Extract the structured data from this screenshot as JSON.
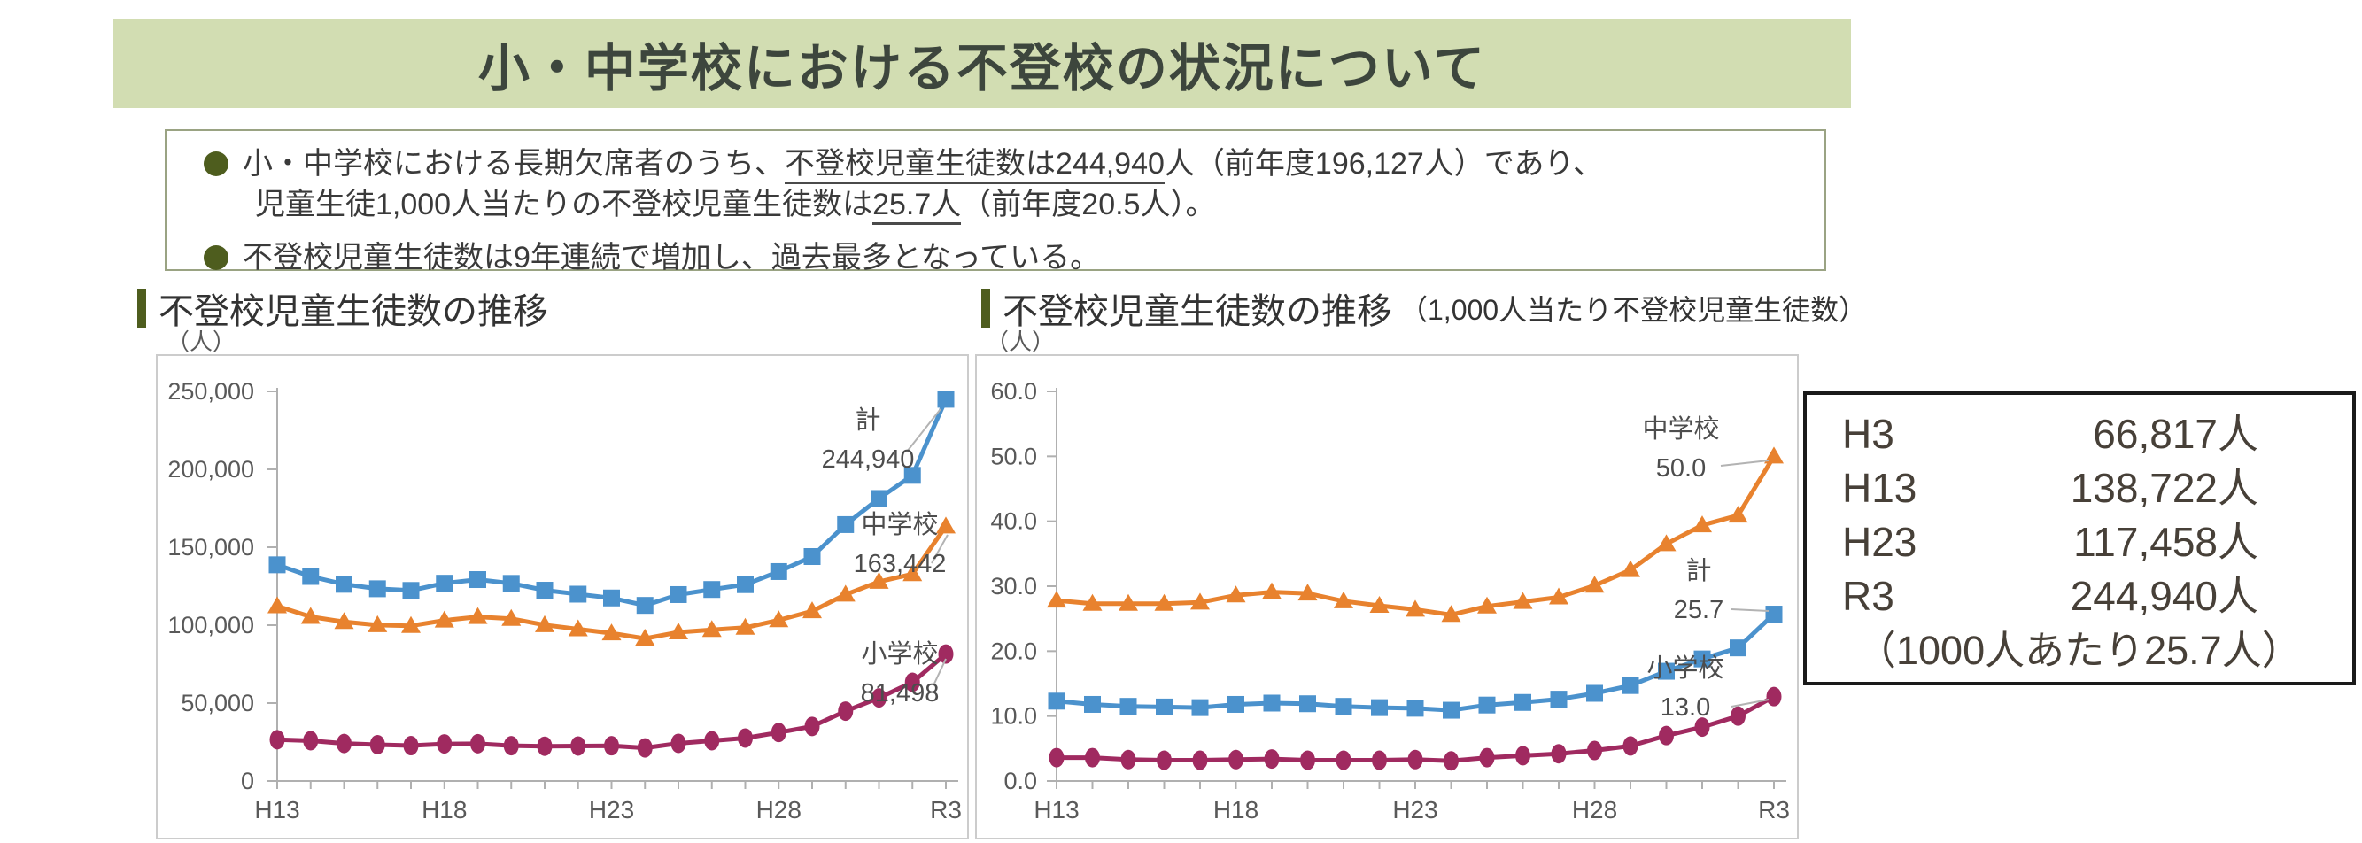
{
  "banner": {
    "title": "小・中学校における不登校の状況について"
  },
  "summary": {
    "b1_l1_a": "小・中学校における長期欠席者のうち、",
    "b1_l1_u": "不登校児童生徒数は244,940",
    "b1_l1_b": "人（前年度196,127人）であり、",
    "b1_l2_a": "児童生徒1,000人当たりの不登校児童生徒数は",
    "b1_l2_u": "25.7人",
    "b1_l2_b": "（前年度20.5人）。",
    "b2": "不登校児童生徒数は9年連続で増加し、過去最多となっている。"
  },
  "colors": {
    "total": "#4b92cd",
    "junior_high": "#e8822e",
    "elementary": "#a02a60",
    "banner_bg": "#d2ddb2",
    "accent_olive": "#4e5d1e",
    "axis": "#b0b0b0",
    "tick_text": "#595959",
    "annotation_text": "#4d4d4d"
  },
  "chart_data": [
    {
      "type": "line",
      "header": "不登校児童生徒数の推移",
      "header_suffix": "",
      "unit_label": "（人）",
      "x": [
        "H13",
        "H14",
        "H15",
        "H16",
        "H17",
        "H18",
        "H19",
        "H20",
        "H21",
        "H22",
        "H23",
        "H24",
        "H25",
        "H26",
        "H27",
        "H28",
        "H29",
        "H30",
        "R1",
        "R2",
        "R3"
      ],
      "x_tick_label_indices": [
        0,
        5,
        10,
        15,
        20
      ],
      "ylim": [
        0,
        250000
      ],
      "yticks": [
        0,
        50000,
        100000,
        150000,
        200000,
        250000
      ],
      "ytick_labels": [
        "0",
        "50,000",
        "100,000",
        "150,000",
        "200,000",
        "250,000"
      ],
      "grid": false,
      "legend_position": "end-labels",
      "series": [
        {
          "name": "計",
          "marker": "square",
          "color": "#4b92cd",
          "values": [
            138722,
            131252,
            126226,
            123358,
            122287,
            126894,
            129254,
            126805,
            122432,
            119891,
            117458,
            112689,
            119617,
            122897,
            126009,
            134398,
            144031,
            164528,
            181272,
            196127,
            244940
          ]
        },
        {
          "name": "中学校",
          "marker": "triangle",
          "color": "#e8822e",
          "values": [
            112211,
            105383,
            102149,
            100040,
            99578,
            103069,
            105328,
            104153,
            100105,
            97428,
            94836,
            91446,
            95442,
            97033,
            98408,
            103235,
            108999,
            119687,
            127922,
            132777,
            163442
          ]
        },
        {
          "name": "小学校",
          "marker": "circle",
          "color": "#a02a60",
          "values": [
            26511,
            25869,
            24077,
            23318,
            22709,
            23825,
            23926,
            22652,
            22327,
            22463,
            22622,
            21243,
            24175,
            25864,
            27581,
            31151,
            35032,
            44841,
            53350,
            63350,
            81498
          ]
        }
      ],
      "annotations": [
        {
          "name": "計",
          "value": "244,940",
          "x": 802,
          "y": 82,
          "connector": [
            846,
            108,
            884,
            60
          ]
        },
        {
          "name": "中学校",
          "value": "163,442",
          "x": 838,
          "y": 200,
          "connector": [
            874,
            234,
            892,
            202
          ]
        },
        {
          "name": "小学校",
          "value": "81,498",
          "x": 838,
          "y": 346,
          "connector": [
            876,
            372,
            890,
            342
          ]
        }
      ]
    },
    {
      "type": "line",
      "header": "不登校児童生徒数の推移",
      "header_suffix": "（1,000人当たり不登校児童生徒数）",
      "unit_label": "（人）",
      "x": [
        "H13",
        "H14",
        "H15",
        "H16",
        "H17",
        "H18",
        "H19",
        "H20",
        "H21",
        "H22",
        "H23",
        "H24",
        "H25",
        "H26",
        "H27",
        "H28",
        "H29",
        "H30",
        "R1",
        "R2",
        "R3"
      ],
      "x_tick_label_indices": [
        0,
        5,
        10,
        15,
        20
      ],
      "ylim": [
        0,
        60
      ],
      "yticks": [
        0,
        10,
        20,
        30,
        40,
        50,
        60
      ],
      "ytick_labels": [
        "0.0",
        "10.0",
        "20.0",
        "30.0",
        "40.0",
        "50.0",
        "60.0"
      ],
      "grid": false,
      "legend_position": "end-labels",
      "series": [
        {
          "name": "中学校",
          "marker": "triangle",
          "color": "#e8822e",
          "values": [
            27.8,
            27.3,
            27.3,
            27.3,
            27.5,
            28.6,
            29.1,
            28.9,
            27.7,
            27.0,
            26.4,
            25.6,
            26.9,
            27.6,
            28.3,
            30.1,
            32.5,
            36.5,
            39.4,
            40.9,
            50.0
          ]
        },
        {
          "name": "計",
          "marker": "square",
          "color": "#4b92cd",
          "values": [
            12.3,
            11.8,
            11.5,
            11.4,
            11.3,
            11.8,
            12.0,
            11.9,
            11.5,
            11.3,
            11.2,
            10.9,
            11.7,
            12.1,
            12.6,
            13.5,
            14.7,
            16.9,
            18.8,
            20.5,
            25.7
          ]
        },
        {
          "name": "小学校",
          "marker": "circle",
          "color": "#a02a60",
          "values": [
            3.6,
            3.6,
            3.3,
            3.2,
            3.2,
            3.3,
            3.4,
            3.2,
            3.2,
            3.2,
            3.3,
            3.1,
            3.6,
            3.9,
            4.2,
            4.7,
            5.4,
            7.0,
            8.3,
            10.0,
            13.0
          ]
        }
      ],
      "annotations": [
        {
          "name": "中学校",
          "value": "50.0",
          "x": 795,
          "y": 92,
          "connector": [
            840,
            124,
            894,
            118
          ]
        },
        {
          "name": "計",
          "value": "25.7",
          "x": 815,
          "y": 252,
          "connector": [
            852,
            286,
            894,
            288
          ]
        },
        {
          "name": "小学校",
          "value": "13.0",
          "x": 800,
          "y": 362,
          "connector": [
            852,
            396,
            894,
            388
          ]
        }
      ]
    }
  ],
  "side_box": {
    "rows": [
      {
        "label": "H3",
        "value": "66,817人"
      },
      {
        "label": "H13",
        "value": "138,722人"
      },
      {
        "label": "H23",
        "value": "117,458人"
      },
      {
        "label": "R3",
        "value": "244,940人"
      }
    ],
    "footnote": "（1000人あたり25.7人）"
  }
}
